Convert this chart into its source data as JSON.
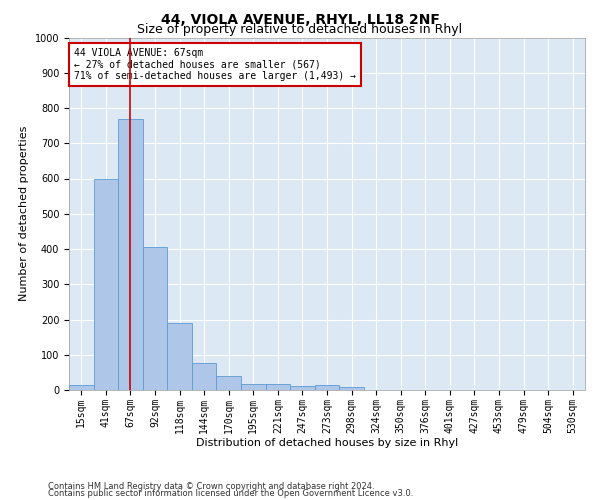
{
  "title": "44, VIOLA AVENUE, RHYL, LL18 2NF",
  "subtitle": "Size of property relative to detached houses in Rhyl",
  "xlabel": "Distribution of detached houses by size in Rhyl",
  "ylabel": "Number of detached properties",
  "footnote1": "Contains HM Land Registry data © Crown copyright and database right 2024.",
  "footnote2": "Contains public sector information licensed under the Open Government Licence v3.0.",
  "categories": [
    "15sqm",
    "41sqm",
    "67sqm",
    "92sqm",
    "118sqm",
    "144sqm",
    "170sqm",
    "195sqm",
    "221sqm",
    "247sqm",
    "273sqm",
    "298sqm",
    "324sqm",
    "350sqm",
    "376sqm",
    "401sqm",
    "427sqm",
    "453sqm",
    "479sqm",
    "504sqm",
    "530sqm"
  ],
  "values": [
    15,
    600,
    770,
    405,
    190,
    77,
    40,
    18,
    16,
    10,
    13,
    8,
    0,
    0,
    0,
    0,
    0,
    0,
    0,
    0,
    0
  ],
  "bar_color": "#aec6e8",
  "bar_edge_color": "#5b9bd5",
  "property_line_x": 2,
  "property_line_color": "#cc0000",
  "annotation_line1": "44 VIOLA AVENUE: 67sqm",
  "annotation_line2": "← 27% of detached houses are smaller (567)",
  "annotation_line3": "71% of semi-detached houses are larger (1,493) →",
  "annotation_box_color": "#cc0000",
  "ylim": [
    0,
    1000
  ],
  "yticks": [
    0,
    100,
    200,
    300,
    400,
    500,
    600,
    700,
    800,
    900,
    1000
  ],
  "background_color": "#ffffff",
  "grid_color": "#dce9f5",
  "title_fontsize": 10,
  "subtitle_fontsize": 9,
  "axis_label_fontsize": 8,
  "tick_fontsize": 7
}
